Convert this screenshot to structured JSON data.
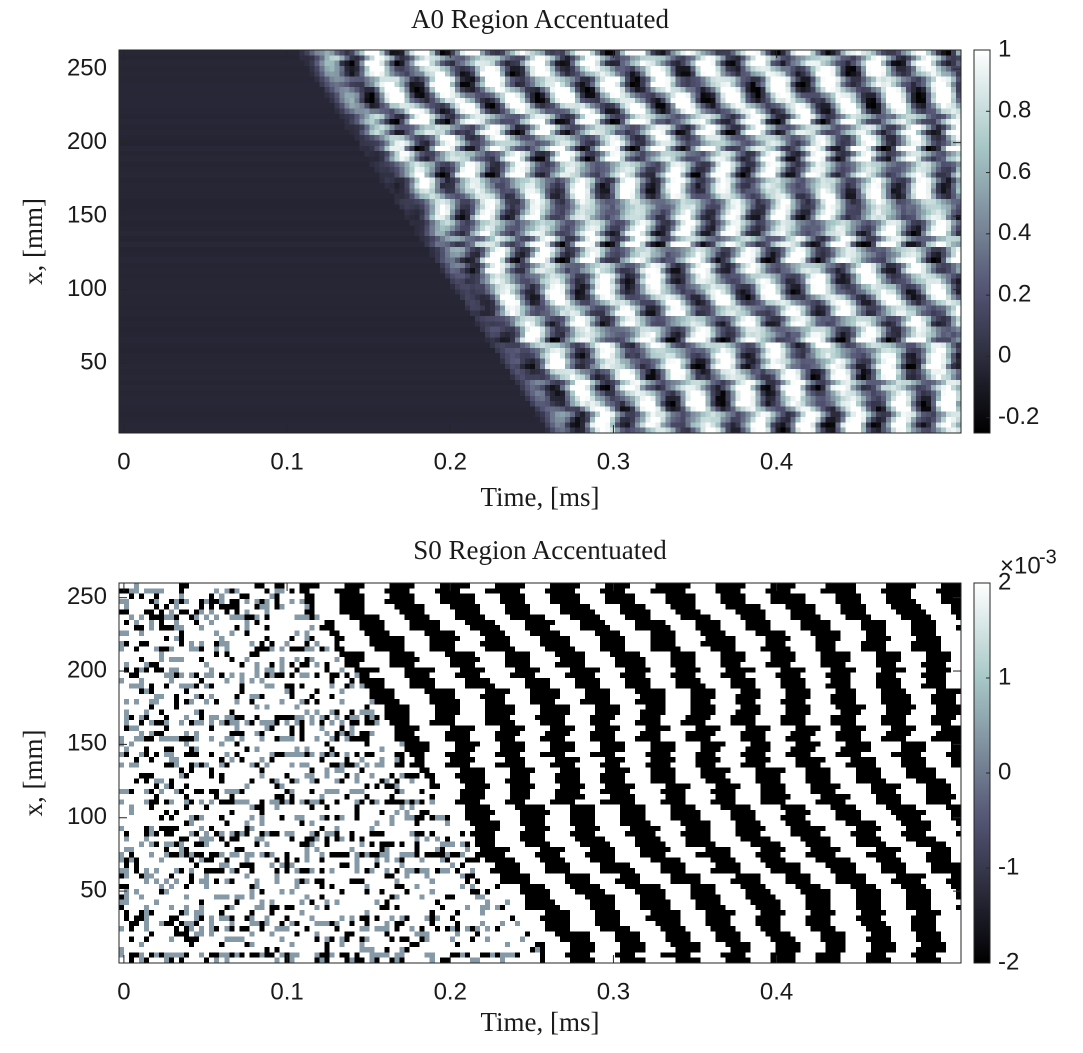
{
  "chart_data": [
    {
      "type": "heatmap",
      "title": "A0 Region Accentuated",
      "xlabel": "Time, [ms]",
      "ylabel": "x, [mm]",
      "xlim": [
        -0.003,
        0.513
      ],
      "xticks": [
        0,
        0.1,
        0.2,
        0.3,
        0.4
      ],
      "ylim": [
        2.5,
        263
      ],
      "yticks": [
        50,
        100,
        150,
        200,
        250
      ],
      "colormap": "bone",
      "clim": [
        -0.25,
        1
      ],
      "cticks": [
        -0.2,
        0,
        0.2,
        0.4,
        0.6,
        0.8,
        1
      ]
    },
    {
      "type": "heatmap",
      "title": "S0 Region Accentuated",
      "xlabel": "Time, [ms]",
      "ylabel": "x, [mm]",
      "xlim": [
        -0.003,
        0.513
      ],
      "xticks": [
        0,
        0.1,
        0.2,
        0.3,
        0.4
      ],
      "ylim": [
        1,
        260
      ],
      "yticks": [
        50,
        100,
        150,
        200,
        250
      ],
      "colormap": "bone",
      "clim": [
        -2,
        2
      ],
      "cticks": [
        -2,
        -1,
        0,
        1,
        2
      ],
      "colorbar_multiplier": {
        "base": "×10",
        "exponent": "-3"
      }
    }
  ]
}
